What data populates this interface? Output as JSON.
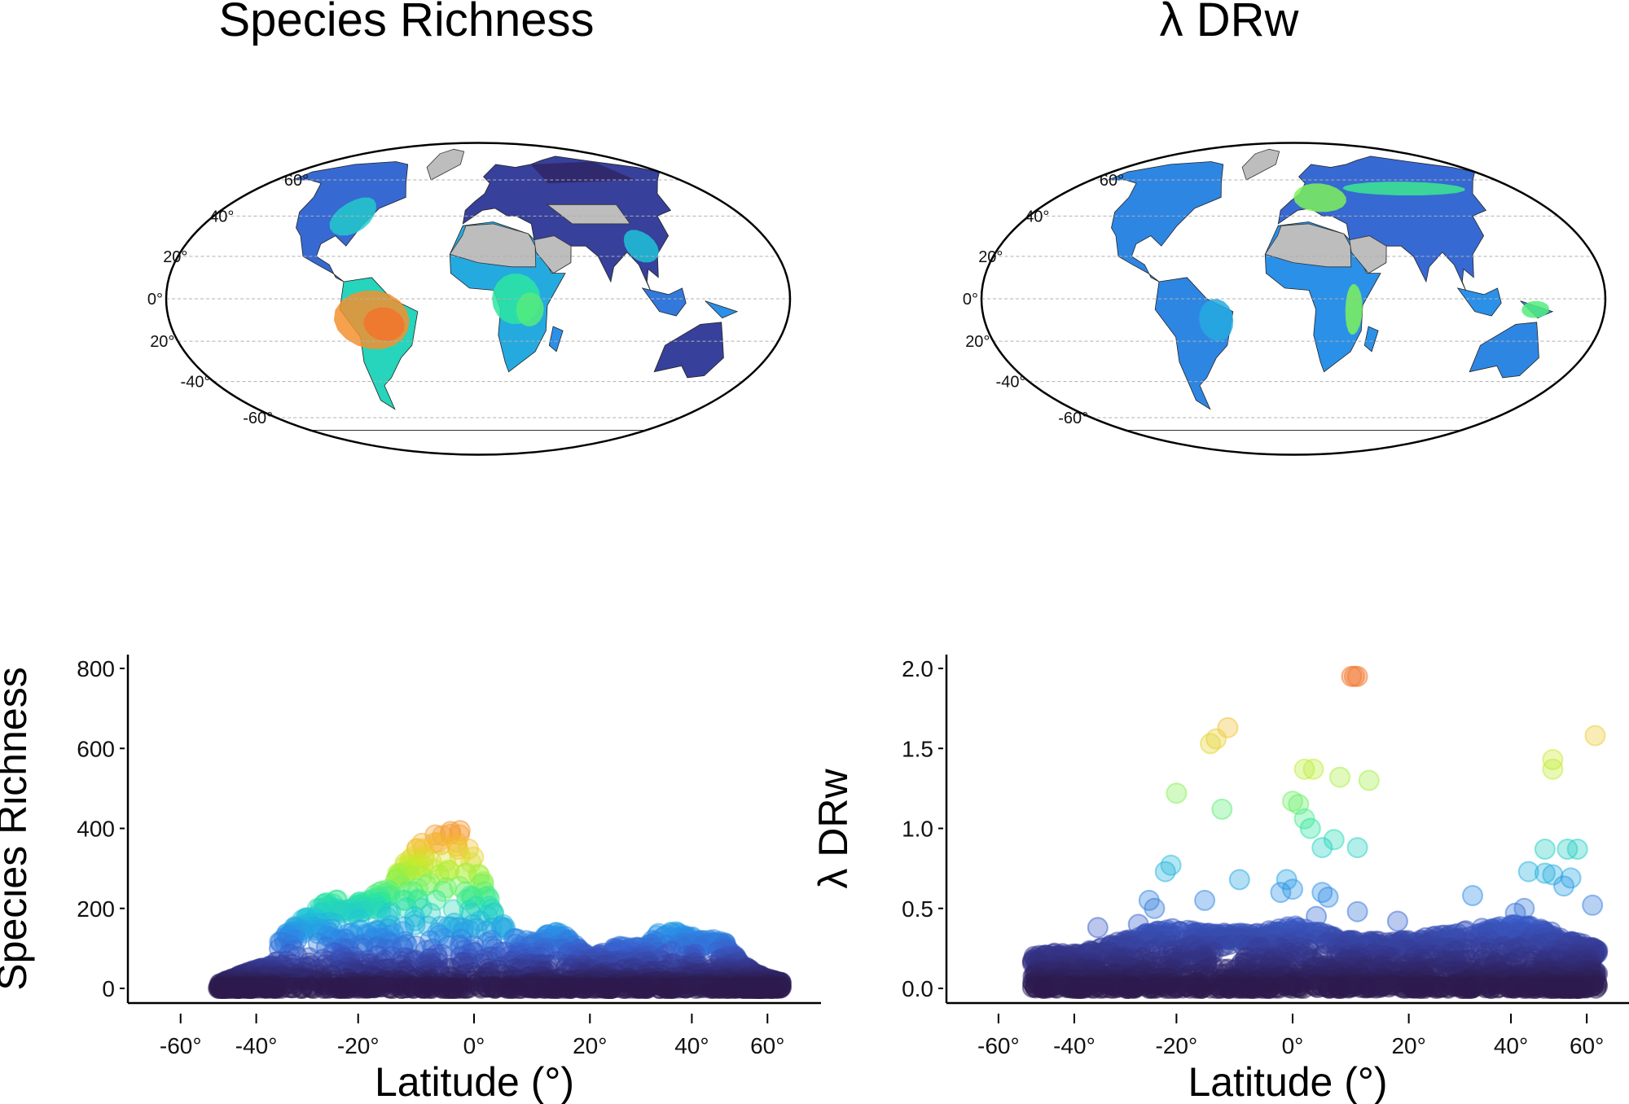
{
  "titles": {
    "left": "Species Richness",
    "right": "λ DRw"
  },
  "map_labels": [
    "60°",
    "40°",
    "20°",
    "0°",
    "20°",
    "-40°",
    "-60°"
  ],
  "colors": {
    "land_missing": "#bdbdbd",
    "ocean": "#ffffff",
    "grid": "#b0b0b0",
    "axis": "#000000"
  },
  "colormap": [
    "#2d1b4e",
    "#36388f",
    "#3a5fcd",
    "#2b90e8",
    "#1fc3d8",
    "#2ce6a0",
    "#7cf25a",
    "#c6ec2e",
    "#f2c830",
    "#f59a30",
    "#f06a2a"
  ],
  "chart_data": [
    {
      "type": "scatter",
      "title": "Species Richness",
      "xlabel": "Latitude (°)",
      "ylabel": "Species Richness",
      "xlim": [
        -70,
        66
      ],
      "ylim": [
        -40,
        840
      ],
      "x_scale": "sine",
      "xticks": [
        -60,
        -40,
        -20,
        0,
        20,
        40,
        60
      ],
      "xtick_labels": [
        "-60°",
        "-40°",
        "-20°",
        "0°",
        "20°",
        "40°",
        "60°"
      ],
      "yticks": [
        0,
        200,
        400,
        600,
        800
      ],
      "ytick_labels": [
        "0",
        "200",
        "400",
        "600",
        "800"
      ],
      "color_max": 430,
      "data_lat_range": [
        -49,
        65
      ],
      "upper_envelope": [
        [
          -49,
          10
        ],
        [
          -42,
          40
        ],
        [
          -36,
          60
        ],
        [
          -35,
          120
        ],
        [
          -30,
          180
        ],
        [
          -25,
          225
        ],
        [
          -20,
          215
        ],
        [
          -17,
          240
        ],
        [
          -14,
          270
        ],
        [
          -10,
          350
        ],
        [
          -6,
          410
        ],
        [
          -3,
          415
        ],
        [
          -1,
          360
        ],
        [
          1,
          300
        ],
        [
          3,
          220
        ],
        [
          6,
          130
        ],
        [
          10,
          120
        ],
        [
          13,
          140
        ],
        [
          15,
          145
        ],
        [
          18,
          100
        ],
        [
          20,
          75
        ],
        [
          24,
          100
        ],
        [
          26,
          110
        ],
        [
          30,
          100
        ],
        [
          33,
          140
        ],
        [
          35,
          150
        ],
        [
          39,
          130
        ],
        [
          44,
          125
        ],
        [
          48,
          115
        ],
        [
          52,
          60
        ],
        [
          58,
          30
        ],
        [
          62,
          20
        ],
        [
          65,
          15
        ]
      ]
    },
    {
      "type": "scatter",
      "title": "λ DRw",
      "xlabel": "Latitude (°)",
      "ylabel": "λ DRw",
      "xlim": [
        -70,
        66
      ],
      "ylim": [
        -0.1,
        2.1
      ],
      "x_scale": "sine",
      "xticks": [
        -60,
        -40,
        -20,
        0,
        20,
        40,
        60
      ],
      "xtick_labels": [
        "-60°",
        "-40°",
        "-20°",
        "0°",
        "20°",
        "40°",
        "60°"
      ],
      "yticks": [
        0,
        0.5,
        1.0,
        1.5,
        2.0
      ],
      "ytick_labels": [
        "0.0",
        "0.5",
        "1.0",
        "1.5",
        "2.0"
      ],
      "color_max": 2.0,
      "data_lat_range": [
        -50,
        64
      ],
      "upper_envelope": [
        [
          -50,
          0.2
        ],
        [
          -45,
          0.22
        ],
        [
          -40,
          0.22
        ],
        [
          -35,
          0.25
        ],
        [
          -30,
          0.3
        ],
        [
          -25,
          0.35
        ],
        [
          -20,
          0.38
        ],
        [
          -15,
          0.35
        ],
        [
          -10,
          0.35
        ],
        [
          -5,
          0.35
        ],
        [
          0,
          0.4
        ],
        [
          5,
          0.35
        ],
        [
          10,
          0.3
        ],
        [
          15,
          0.3
        ],
        [
          20,
          0.3
        ],
        [
          25,
          0.33
        ],
        [
          30,
          0.36
        ],
        [
          35,
          0.38
        ],
        [
          40,
          0.4
        ],
        [
          45,
          0.4
        ],
        [
          50,
          0.35
        ],
        [
          55,
          0.3
        ],
        [
          60,
          0.27
        ],
        [
          64,
          0.25
        ]
      ],
      "outliers": [
        [
          10,
          1.95
        ],
        [
          10.5,
          1.95
        ],
        [
          11,
          1.95
        ],
        [
          -14,
          1.53
        ],
        [
          -13,
          1.56
        ],
        [
          -11,
          1.63
        ],
        [
          63,
          1.58
        ],
        [
          50,
          1.43
        ],
        [
          50,
          1.37
        ],
        [
          2,
          1.37
        ],
        [
          3.5,
          1.37
        ],
        [
          8,
          1.32
        ],
        [
          13,
          1.3
        ],
        [
          -20,
          1.22
        ],
        [
          -12,
          1.12
        ],
        [
          0,
          1.17
        ],
        [
          1,
          1.15
        ],
        [
          2,
          1.06
        ],
        [
          3,
          1.0
        ],
        [
          7,
          0.93
        ],
        [
          5,
          0.88
        ],
        [
          11,
          0.88
        ],
        [
          48,
          0.87
        ],
        [
          54,
          0.87
        ],
        [
          57,
          0.87
        ],
        [
          -21,
          0.77
        ],
        [
          -22,
          0.73
        ],
        [
          44,
          0.73
        ],
        [
          48,
          0.72
        ],
        [
          50,
          0.71
        ],
        [
          55,
          0.69
        ],
        [
          -9,
          0.68
        ],
        [
          -1,
          0.68
        ],
        [
          -2,
          0.6
        ],
        [
          0,
          0.62
        ],
        [
          5,
          0.6
        ],
        [
          6,
          0.57
        ],
        [
          53,
          0.64
        ],
        [
          32,
          0.58
        ],
        [
          -15,
          0.55
        ],
        [
          -25,
          0.55
        ],
        [
          -24,
          0.5
        ],
        [
          62,
          0.52
        ],
        [
          11,
          0.48
        ],
        [
          4,
          0.45
        ],
        [
          18,
          0.42
        ],
        [
          -35,
          0.38
        ],
        [
          -27,
          0.4
        ],
        [
          41,
          0.47
        ],
        [
          43,
          0.5
        ]
      ]
    }
  ]
}
